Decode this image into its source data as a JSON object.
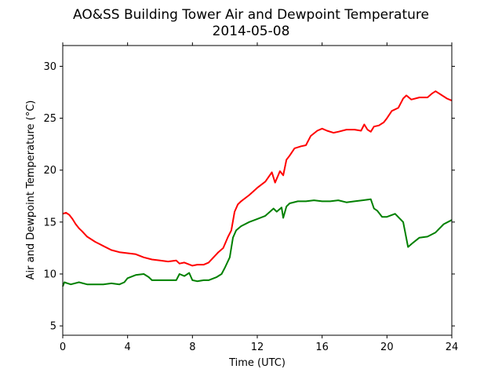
{
  "chart_data": {
    "type": "line",
    "title": "AO&SS Building Tower Air and Dewpoint Temperature",
    "subtitle": "2014-05-08",
    "xlabel": "Time (UTC)",
    "ylabel": "Air and Dewpoint Temperature (°C)",
    "xlim": [
      0,
      24
    ],
    "ylim": [
      4.1,
      32
    ],
    "xticks": [
      0,
      4,
      8,
      12,
      16,
      20,
      24
    ],
    "yticks": [
      5,
      10,
      15,
      20,
      25,
      30
    ],
    "grid": false,
    "legend": "none",
    "series": [
      {
        "color": "#ff0000",
        "x": [
          0,
          0.2,
          0.4,
          0.6,
          0.8,
          1.0,
          1.2,
          1.5,
          2.0,
          2.5,
          3.0,
          3.5,
          4.0,
          4.5,
          5.0,
          5.5,
          6.0,
          6.5,
          7.0,
          7.2,
          7.5,
          8.0,
          8.3,
          8.7,
          9.0,
          9.3,
          9.6,
          9.9,
          10.2,
          10.4,
          10.6,
          10.8,
          11.0,
          11.5,
          12.0,
          12.5,
          12.9,
          13.1,
          13.4,
          13.6,
          13.8,
          14.0,
          14.3,
          14.7,
          15.0,
          15.3,
          15.7,
          16.0,
          16.3,
          16.7,
          17.0,
          17.5,
          18.0,
          18.4,
          18.6,
          18.8,
          19.0,
          19.2,
          19.5,
          19.8,
          20.0,
          20.3,
          20.7,
          21.0,
          21.2,
          21.5,
          22.0,
          22.5,
          22.8,
          23.0,
          23.4,
          23.7,
          24.0
        ],
        "values": [
          15.8,
          15.9,
          15.7,
          15.3,
          14.8,
          14.4,
          14.1,
          13.6,
          13.1,
          12.7,
          12.3,
          12.1,
          12.0,
          11.9,
          11.6,
          11.4,
          11.3,
          11.2,
          11.3,
          11.0,
          11.1,
          10.8,
          10.9,
          10.9,
          11.1,
          11.6,
          12.1,
          12.5,
          13.6,
          14.2,
          16.0,
          16.7,
          17.0,
          17.6,
          18.3,
          18.9,
          19.8,
          18.8,
          19.9,
          19.5,
          21.0,
          21.4,
          22.1,
          22.3,
          22.4,
          23.3,
          23.8,
          24.0,
          23.8,
          23.6,
          23.7,
          23.9,
          23.9,
          23.8,
          24.4,
          23.9,
          23.7,
          24.2,
          24.3,
          24.6,
          25.0,
          25.7,
          26.0,
          26.9,
          27.2,
          26.8,
          27.0,
          27.0,
          27.4,
          27.6,
          27.2,
          26.9,
          26.7
        ]
      },
      {
        "color": "#008000",
        "x": [
          0,
          0.1,
          0.3,
          0.5,
          1.0,
          1.5,
          2.0,
          2.5,
          3.0,
          3.5,
          3.8,
          4.0,
          4.5,
          5.0,
          5.3,
          5.5,
          6.0,
          6.5,
          7.0,
          7.2,
          7.5,
          7.8,
          8.0,
          8.3,
          8.7,
          9.0,
          9.5,
          9.8,
          10.0,
          10.3,
          10.5,
          10.7,
          11.0,
          11.5,
          12.0,
          12.5,
          13.0,
          13.2,
          13.5,
          13.6,
          13.8,
          14.0,
          14.5,
          15.0,
          15.5,
          16.0,
          16.5,
          17.0,
          17.5,
          18.0,
          18.5,
          19.0,
          19.2,
          19.4,
          19.7,
          20.0,
          20.5,
          21.0,
          21.1,
          21.3,
          21.6,
          22.0,
          22.5,
          23.0,
          23.5,
          24.0
        ],
        "values": [
          8.8,
          9.2,
          9.1,
          9.0,
          9.2,
          9.0,
          9.0,
          9.0,
          9.1,
          9.0,
          9.2,
          9.6,
          9.9,
          10.0,
          9.7,
          9.4,
          9.4,
          9.4,
          9.4,
          10.0,
          9.8,
          10.1,
          9.4,
          9.3,
          9.4,
          9.4,
          9.7,
          10.0,
          10.6,
          11.6,
          13.5,
          14.2,
          14.6,
          15.0,
          15.3,
          15.6,
          16.3,
          16.0,
          16.4,
          15.4,
          16.5,
          16.8,
          17.0,
          17.0,
          17.1,
          17.0,
          17.0,
          17.1,
          16.9,
          17.0,
          17.1,
          17.2,
          16.3,
          16.1,
          15.5,
          15.5,
          15.8,
          15.0,
          14.2,
          12.6,
          13.0,
          13.5,
          13.6,
          14.0,
          14.8,
          15.2
        ]
      }
    ]
  }
}
